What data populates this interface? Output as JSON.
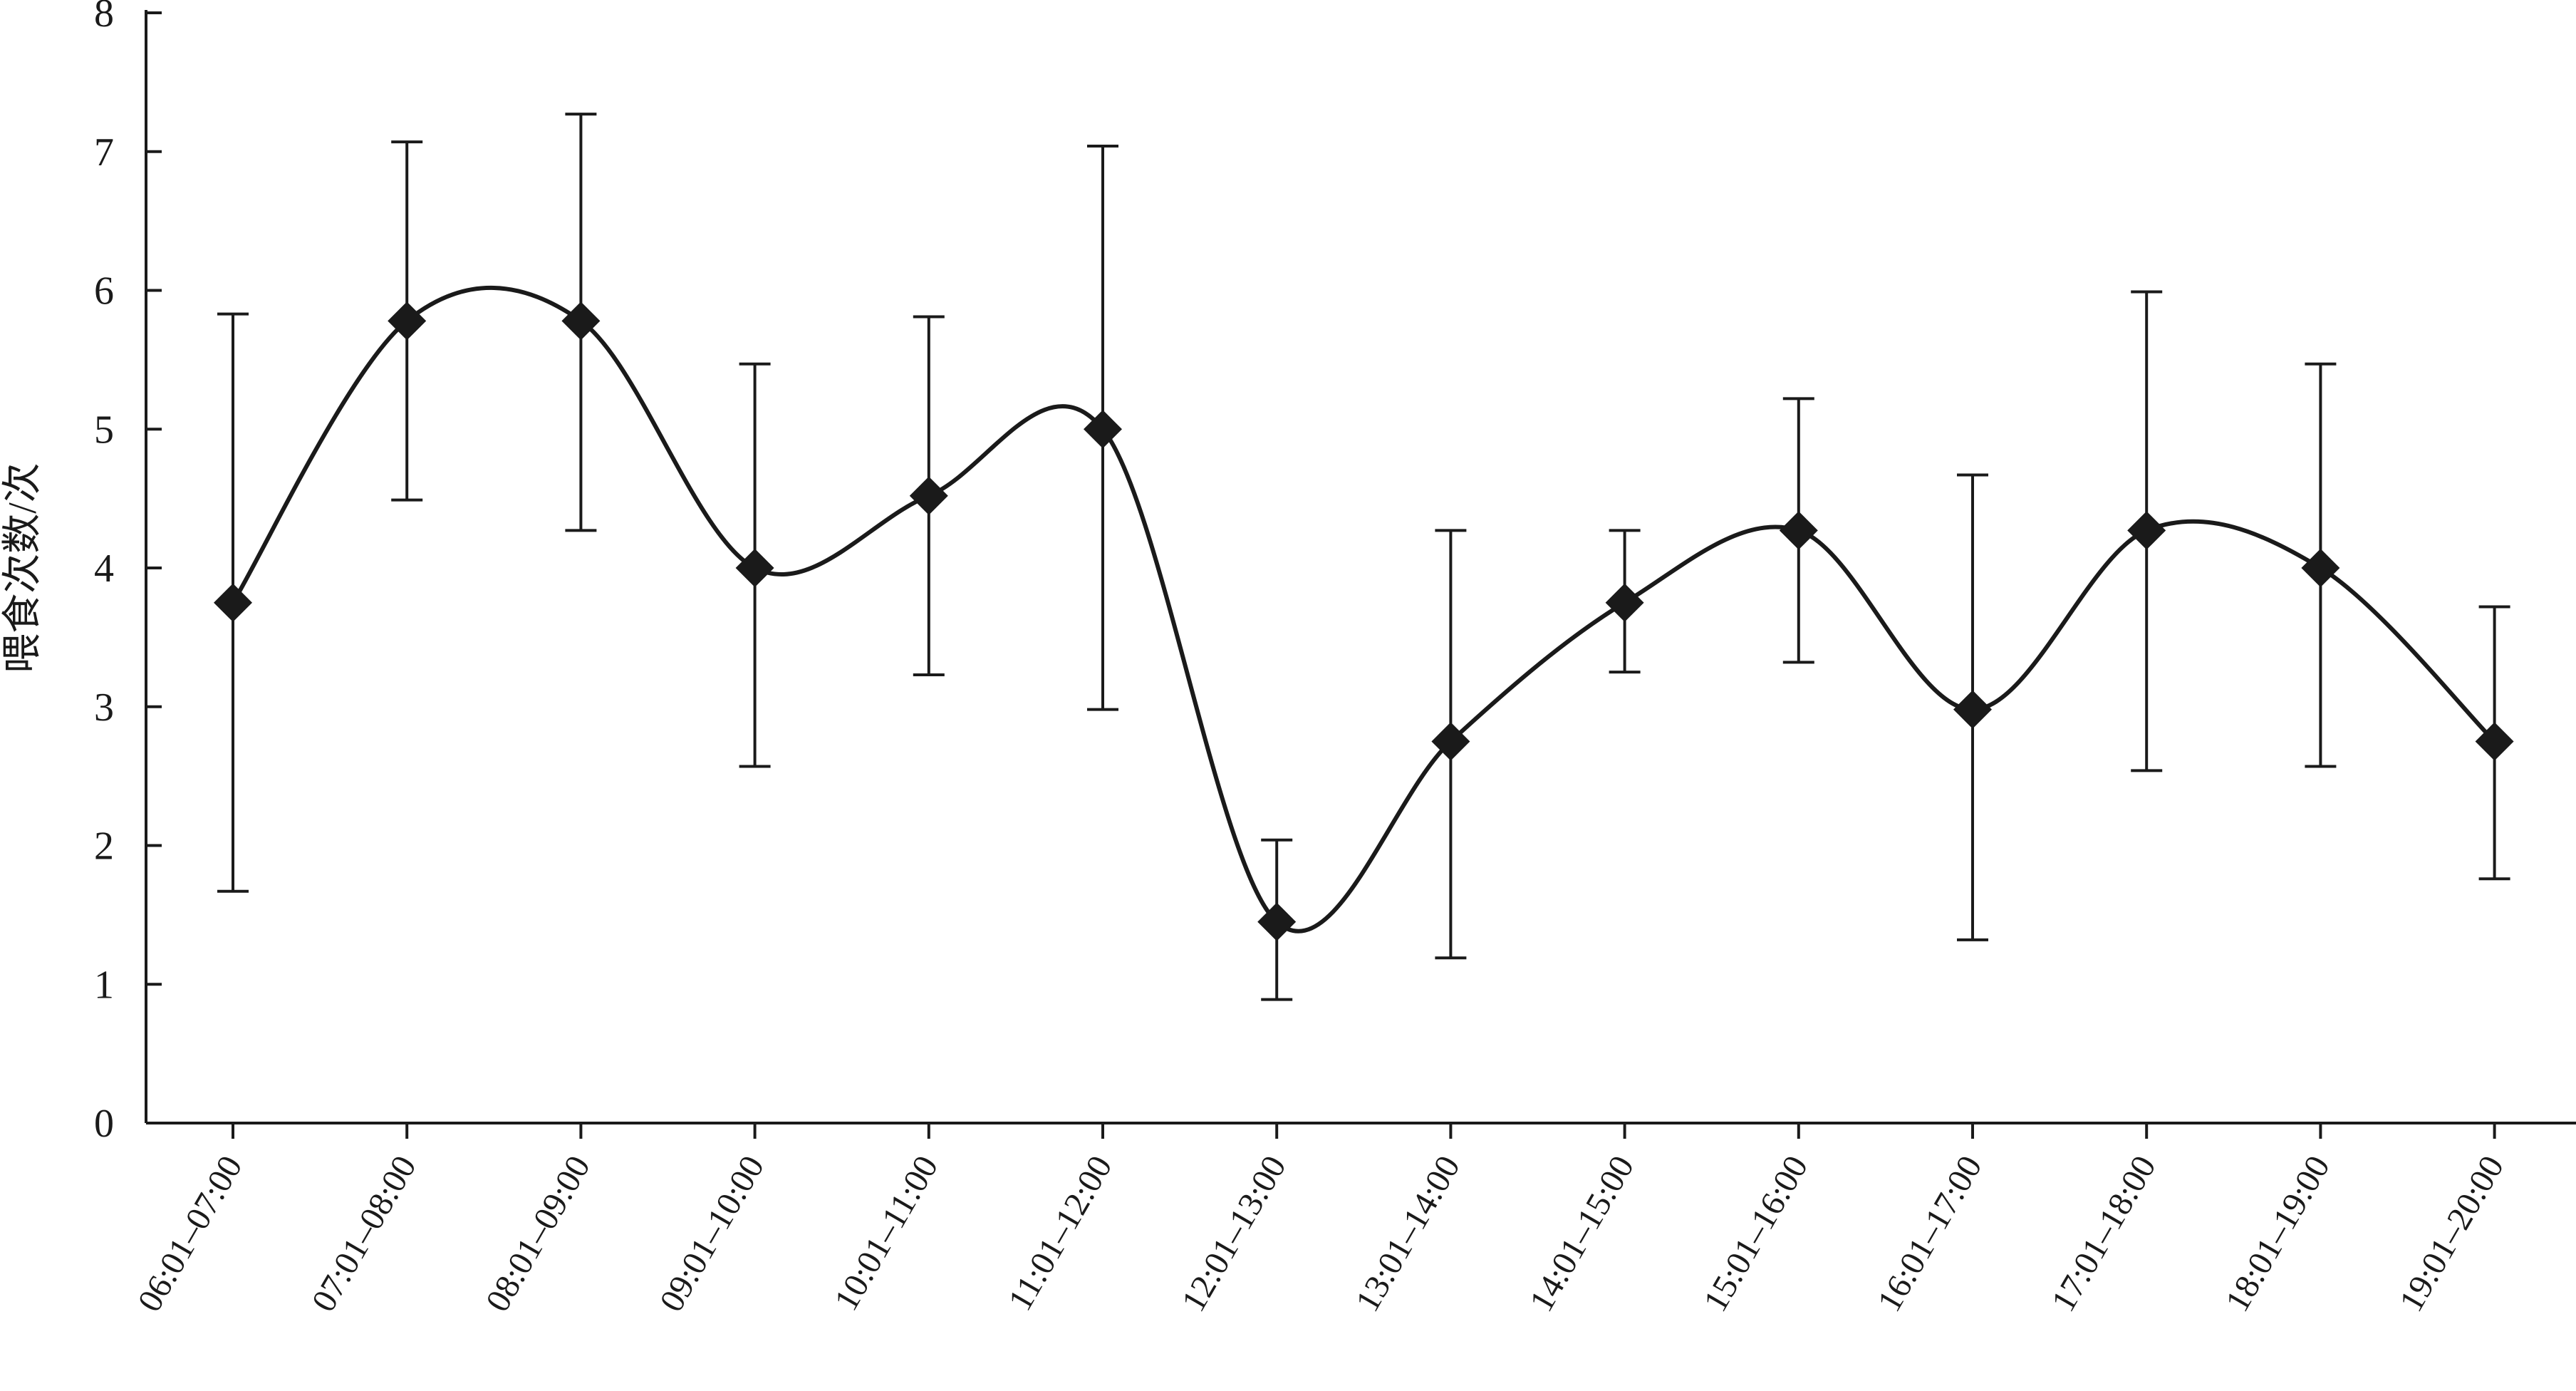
{
  "chart_data": {
    "type": "line",
    "title": "",
    "xlabel": "",
    "ylabel": "喂食次数/次",
    "ylim": [
      0,
      8
    ],
    "yticks": [
      0,
      1,
      2,
      3,
      4,
      5,
      6,
      7,
      8
    ],
    "grid": false,
    "legend": "none",
    "smooth": true,
    "marker": "diamond",
    "colors": {
      "line": "#1a1a1a",
      "marker": "#1a1a1a",
      "axis": "#1a1a1a",
      "background": "#ffffff"
    },
    "categories": [
      "06:01–07:00",
      "07:01–08:00",
      "08:01–09:00",
      "09:01–10:00",
      "10:01–11:00",
      "11:01–12:00",
      "12:01–13:00",
      "13:01–14:00",
      "14:01–15:00",
      "15:01–16:00",
      "16:01–17:00",
      "17:01–18:00",
      "18:01–19:00",
      "19:01–20:00"
    ],
    "series": [
      {
        "values": [
          3.75,
          5.78,
          5.78,
          4.0,
          4.52,
          5.0,
          1.45,
          2.75,
          3.75,
          4.27,
          2.98,
          4.27,
          4.0,
          2.75
        ],
        "error_upper": [
          5.83,
          7.07,
          7.27,
          5.47,
          5.81,
          7.04,
          2.04,
          4.27,
          4.27,
          5.22,
          4.67,
          5.99,
          5.47,
          3.72
        ],
        "error_lower": [
          1.67,
          4.49,
          4.27,
          2.57,
          3.23,
          2.98,
          0.89,
          1.19,
          3.25,
          3.32,
          1.32,
          2.54,
          2.57,
          1.76
        ]
      }
    ]
  }
}
